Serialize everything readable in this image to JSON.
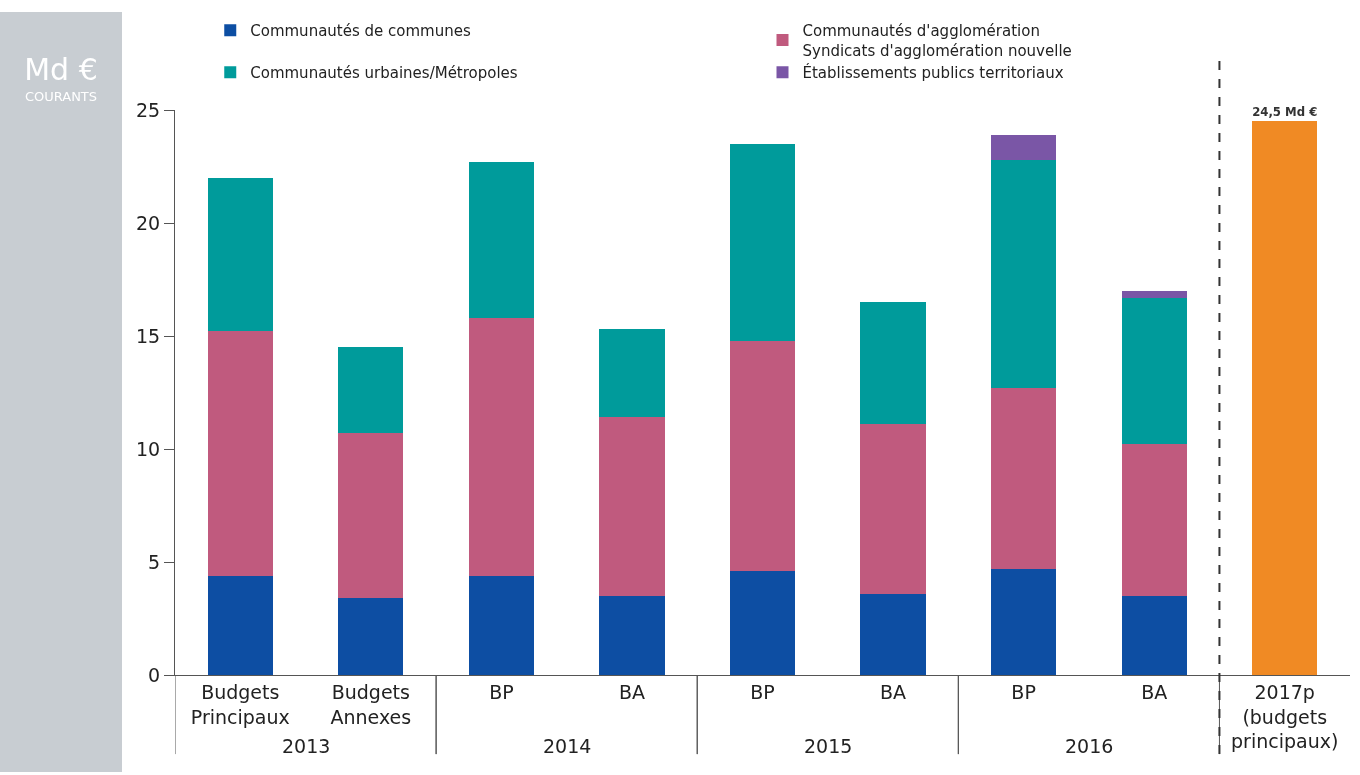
{
  "chart_data": {
    "type": "bar",
    "stacked": true,
    "ylabel": "Md €\nCOURANTS",
    "categories": [
      "Budgets\nPrincipaux",
      "Budgets\nAnnexes",
      "BP",
      "BA",
      "BP",
      "BA",
      "BP",
      "BA",
      "2017p\n(budgets\nprincipaux)"
    ],
    "series": [
      {
        "name": "Communautés de communes",
        "color": "#0d4ea3",
        "values": [
          4.4,
          3.4,
          4.4,
          3.5,
          4.6,
          3.6,
          4.7,
          3.5,
          null
        ]
      },
      {
        "name": "Communautés d'agglomération\nSyndicats d'agglomération nouvelle",
        "color": "#c05a7e",
        "values": [
          10.8,
          7.3,
          11.4,
          7.9,
          10.2,
          7.5,
          8.0,
          6.7,
          null
        ]
      },
      {
        "name": "Communautés urbaines/Métropoles",
        "color": "#009b9b",
        "values": [
          6.8,
          3.8,
          6.9,
          3.9,
          8.7,
          5.4,
          10.1,
          6.5,
          null
        ]
      },
      {
        "name": "Établissements publics territoriaux",
        "color": "#7a56a6",
        "values": [
          null,
          null,
          null,
          null,
          null,
          null,
          1.1,
          0.3,
          null
        ]
      },
      {
        "color": "#f08a24",
        "values": [
          null,
          null,
          null,
          null,
          null,
          null,
          null,
          null,
          24.5
        ],
        "value_labels": [
          null,
          null,
          null,
          null,
          null,
          null,
          null,
          null,
          "24,5 Md €"
        ]
      }
    ],
    "annotations": [
      "2013",
      "2014",
      "2015",
      "2016"
    ],
    "ylim": [
      0,
      25
    ],
    "yticks": [
      0,
      5,
      10,
      15,
      20,
      25
    ],
    "grid": false,
    "legend": "top"
  }
}
